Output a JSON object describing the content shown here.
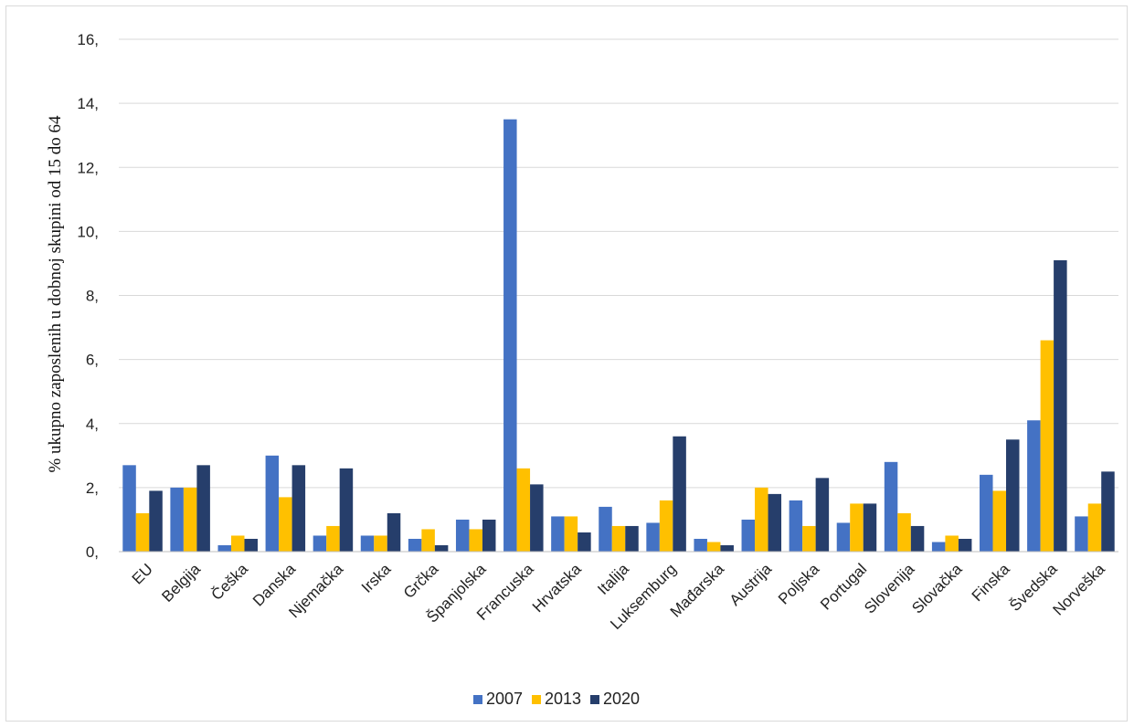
{
  "chart_data": {
    "type": "bar",
    "ylabel": "% ukupno zaposlenih u dobnoj skupini od 15 do 64",
    "xlabel": "",
    "ylim": [
      0,
      16
    ],
    "yticks": [
      0,
      2,
      4,
      6,
      8,
      10,
      12,
      14,
      16
    ],
    "ytick_labels": [
      "0,",
      "2,",
      "4,",
      "6,",
      "8,",
      "10,",
      "12,",
      "14,",
      "16,"
    ],
    "grid": true,
    "legend_position": "bottom",
    "categories": [
      "EU",
      "Belgija",
      "Češka",
      "Danska",
      "Njemačka",
      "Irska",
      "Grčka",
      "Španjolska",
      "Francuska",
      "Hrvatska",
      "Italija",
      "Luksemburg",
      "Mađarska",
      "Austrija",
      "Poljska",
      "Portugal",
      "Slovenija",
      "Slovačka",
      "Finska",
      "Švedska",
      "Norveška"
    ],
    "series": [
      {
        "name": "2007",
        "color": "#4472c4",
        "values": [
          2.7,
          2.0,
          0.2,
          3.0,
          0.5,
          0.5,
          0.4,
          1.0,
          13.5,
          1.1,
          1.4,
          0.9,
          0.4,
          1.0,
          1.6,
          0.9,
          2.8,
          0.3,
          2.4,
          4.1,
          1.1
        ]
      },
      {
        "name": "2013",
        "color": "#ffc000",
        "values": [
          1.2,
          2.0,
          0.5,
          1.7,
          0.8,
          0.5,
          0.7,
          0.7,
          2.6,
          1.1,
          0.8,
          1.6,
          0.3,
          2.0,
          0.8,
          1.5,
          1.2,
          0.5,
          1.9,
          6.6,
          1.5
        ]
      },
      {
        "name": "2020",
        "color": "#263e6b",
        "values": [
          1.9,
          2.7,
          0.4,
          2.7,
          2.6,
          1.2,
          0.2,
          1.0,
          2.1,
          0.6,
          0.8,
          3.6,
          0.2,
          1.8,
          2.3,
          1.5,
          0.8,
          0.4,
          3.5,
          9.1,
          2.5
        ]
      }
    ]
  }
}
